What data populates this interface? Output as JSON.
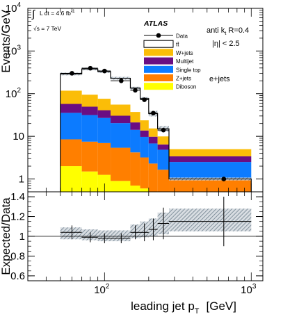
{
  "chart_data": [
    {
      "type": "bar",
      "subtype": "stacked-histogram",
      "ylabel": "Events/GeV",
      "yscale": "log",
      "ylim": [
        0.5,
        10000
      ],
      "xscale": "log",
      "xlim": [
        30,
        1200
      ],
      "y_ticks": [
        {
          "value": 1,
          "base": "1",
          "exp": ""
        },
        {
          "value": 10,
          "base": "10",
          "exp": ""
        },
        {
          "value": 100,
          "base": "10",
          "exp": "2"
        },
        {
          "value": 1000,
          "base": "10",
          "exp": "3"
        },
        {
          "value": 10000,
          "base": "10",
          "exp": "4"
        }
      ],
      "bin_edges": [
        50,
        70,
        90,
        110,
        150,
        175,
        200,
        230,
        275,
        1000
      ],
      "stack": [
        {
          "name": "Diboson",
          "color": "#ffff00",
          "values": [
            2.0,
            1.5,
            1.25,
            0.9,
            0.7,
            0.6,
            0.5,
            0.35,
            0.3
          ]
        },
        {
          "name": "Z+jets",
          "color": "#ff7f00",
          "values": [
            6.5,
            6.0,
            5.7,
            4.5,
            3.5,
            2.6,
            1.8,
            1.3,
            0.7
          ]
        },
        {
          "name": "Single top",
          "color": "#0c7bff",
          "values": [
            27,
            24,
            20,
            15,
            10,
            6.5,
            4.5,
            3.2,
            1.5
          ]
        },
        {
          "name": "Multijet",
          "color": "#6a0d83",
          "values": [
            22,
            18,
            14,
            10,
            7,
            4,
            3,
            1.6,
            0.9
          ]
        },
        {
          "name": "W+jets",
          "color": "#fbbd08",
          "values": [
            60,
            45,
            35,
            25,
            16,
            10,
            5.5,
            3.5,
            1.6
          ]
        }
      ],
      "ttbar": {
        "name": "tt̄",
        "color": "#ffffff",
        "total": [
          290,
          380,
          330,
          230,
          135,
          77,
          34,
          15,
          1.0
        ]
      },
      "data": {
        "name": "Data",
        "x": [
          60,
          80,
          100,
          130,
          162,
          187,
          215,
          252,
          650
        ],
        "y": [
          300,
          395,
          340,
          200,
          120,
          72,
          35,
          14,
          1.0
        ]
      },
      "legend": [
        "Data",
        "tt̄",
        "W+jets",
        "Multijet",
        "Single top",
        "Z+jets",
        "Diboson"
      ],
      "annotations": {
        "lumi_int": "∫",
        "lumi_text": "L dt = 4.6 fb",
        "lumi_exp": "-1",
        "energy": "√s = 7 TeV",
        "experiment": "ATLAS",
        "jet_algo": "anti k",
        "jet_algo_sub": "t",
        "jet_algo_r": " R=0.4",
        "eta": "|η| < 2.5",
        "channel": "e+jets"
      }
    },
    {
      "type": "scatter",
      "subtype": "ratio",
      "ylabel": "Expected/Data",
      "ylim": [
        0.55,
        1.45
      ],
      "y_ticks": [
        "0.6",
        "0.8",
        "1",
        "1.2",
        "1.4"
      ],
      "xlabel": "leading jet p",
      "xlabel_sub": "T",
      "xlabel_unit": "[GeV]",
      "x_ticks": [
        {
          "value": 100,
          "base": "10",
          "exp": "2"
        },
        {
          "value": 1000,
          "base": "10",
          "exp": "3"
        }
      ],
      "points": [
        {
          "xlo": 50,
          "xhi": 70,
          "x": 60,
          "y": 1.04,
          "err": 0.07
        },
        {
          "xlo": 70,
          "xhi": 90,
          "x": 80,
          "y": 0.99,
          "err": 0.05
        },
        {
          "xlo": 90,
          "xhi": 110,
          "x": 100,
          "y": 0.98,
          "err": 0.05
        },
        {
          "xlo": 110,
          "xhi": 150,
          "x": 130,
          "y": 0.98,
          "err": 0.05
        },
        {
          "xlo": 150,
          "xhi": 175,
          "x": 162,
          "y": 1.04,
          "err": 0.07
        },
        {
          "xlo": 175,
          "xhi": 200,
          "x": 187,
          "y": 1.04,
          "err": 0.09
        },
        {
          "xlo": 200,
          "xhi": 230,
          "x": 215,
          "y": 1.07,
          "err": 0.11
        },
        {
          "xlo": 230,
          "xhi": 275,
          "x": 252,
          "y": 1.13,
          "err": 0.16
        },
        {
          "xlo": 275,
          "xhi": 1000,
          "x": 650,
          "y": 1.15,
          "err": 0.25
        }
      ],
      "band": [
        {
          "xlo": 50,
          "xhi": 70,
          "lo": 0.97,
          "hi": 1.09
        },
        {
          "xlo": 70,
          "xhi": 90,
          "lo": 0.96,
          "hi": 1.07
        },
        {
          "xlo": 90,
          "xhi": 110,
          "lo": 0.95,
          "hi": 1.06
        },
        {
          "xlo": 110,
          "xhi": 150,
          "lo": 0.95,
          "hi": 1.06
        },
        {
          "xlo": 150,
          "xhi": 175,
          "lo": 0.98,
          "hi": 1.12
        },
        {
          "xlo": 175,
          "xhi": 200,
          "lo": 0.99,
          "hi": 1.15
        },
        {
          "xlo": 200,
          "xhi": 230,
          "lo": 1.0,
          "hi": 1.18
        },
        {
          "xlo": 230,
          "xhi": 275,
          "lo": 1.02,
          "hi": 1.24
        },
        {
          "xlo": 275,
          "xhi": 1000,
          "lo": 1.05,
          "hi": 1.28
        }
      ]
    }
  ]
}
